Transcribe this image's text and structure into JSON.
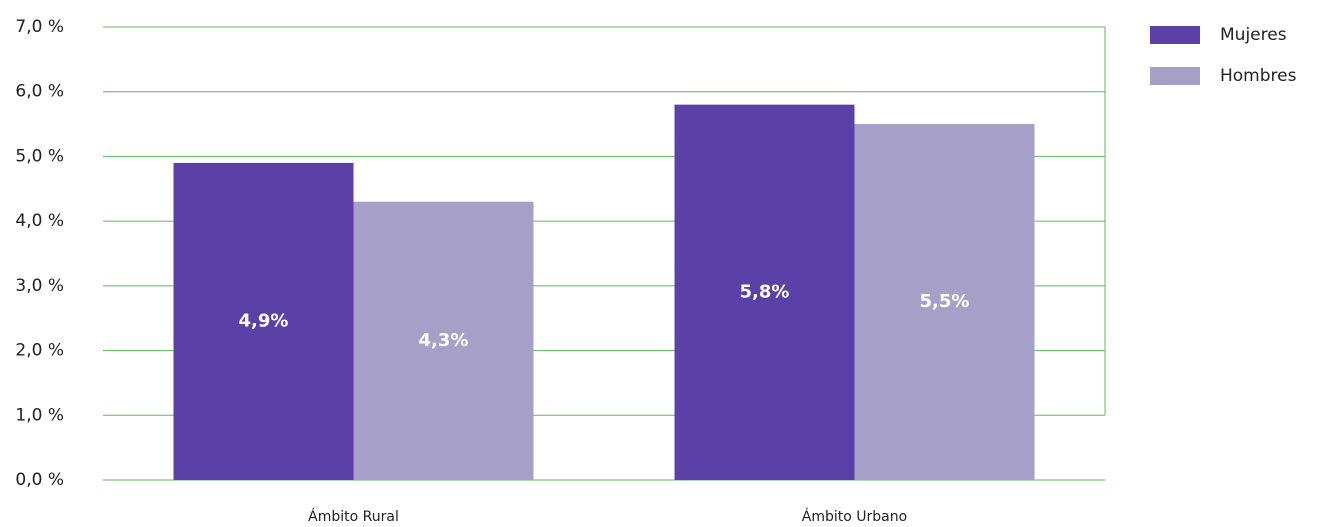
{
  "chart_data": {
    "type": "bar",
    "categories": [
      "Ámbito Rural",
      "Ámbito Urbano"
    ],
    "series": [
      {
        "name": "Mujeres",
        "color": "#5b40a8",
        "values": [
          4.9,
          5.8
        ],
        "value_labels": [
          "4,9%",
          "5,8%"
        ]
      },
      {
        "name": "Hombres",
        "color": "#a69fc8",
        "values": [
          4.3,
          5.5
        ],
        "value_labels": [
          "4,3%",
          "5,5%"
        ]
      }
    ],
    "ylim": [
      0,
      7
    ],
    "yticks": [
      {
        "value": 0,
        "label": "0,0 %"
      },
      {
        "value": 1,
        "label": "1,0 %"
      },
      {
        "value": 2,
        "label": "2,0 %"
      },
      {
        "value": 3,
        "label": "3,0 %"
      },
      {
        "value": 4,
        "label": "4,0 %"
      },
      {
        "value": 5,
        "label": "5,0 %"
      },
      {
        "value": 6,
        "label": "6,0 %"
      },
      {
        "value": 7,
        "label": "7,0 %"
      }
    ],
    "grid": true,
    "grid_color": "#5cb85c",
    "legend": "top-right"
  }
}
